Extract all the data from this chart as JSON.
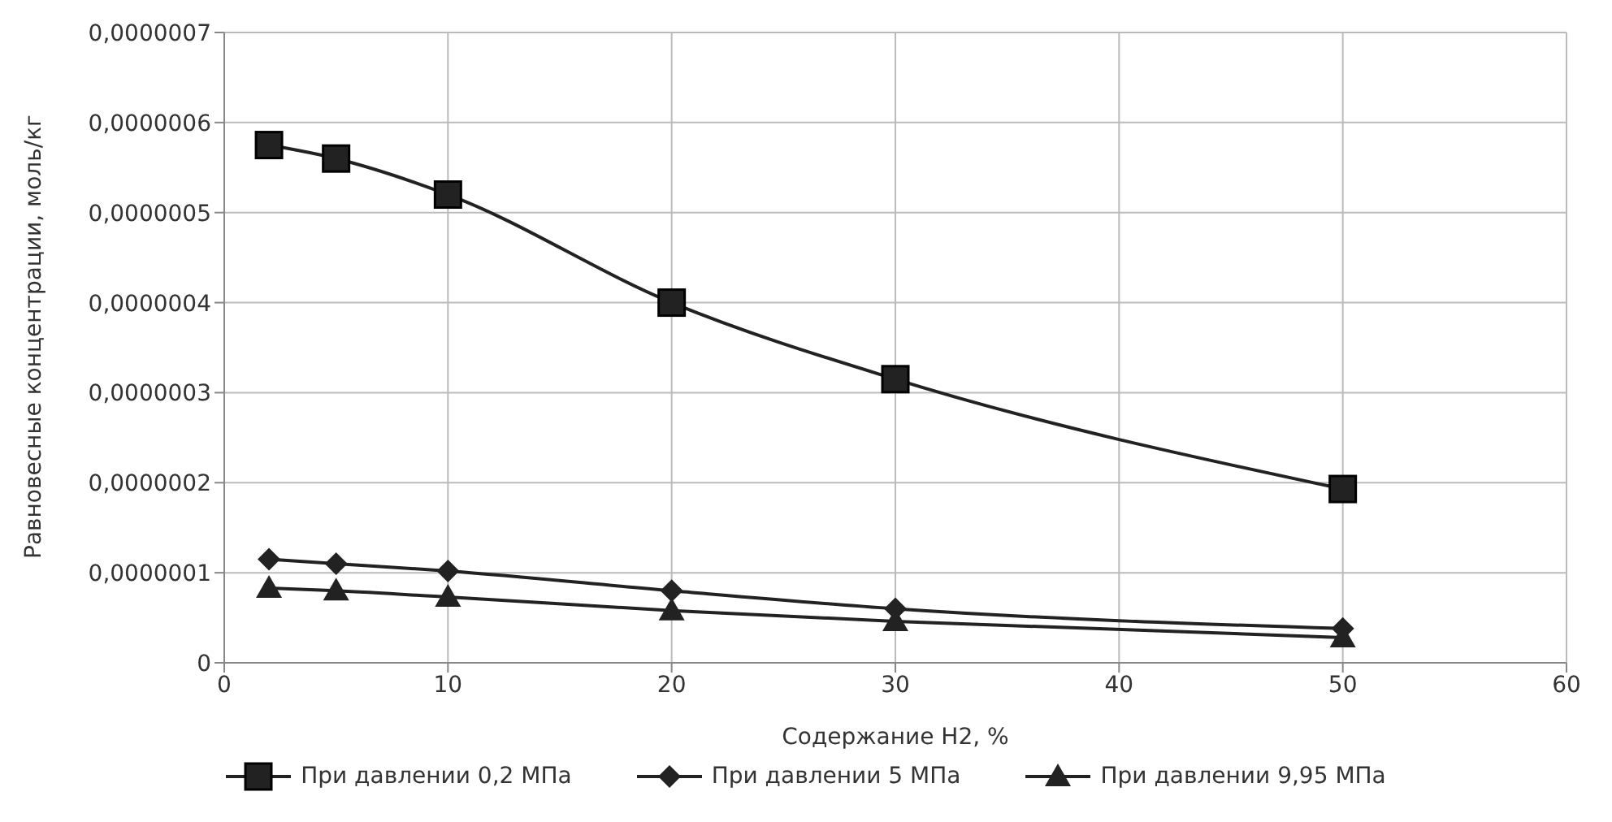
{
  "chart_data": {
    "type": "line",
    "xlabel": "Содержание H2, %",
    "ylabel": "Равновесные концентрации, моль/кг",
    "x": [
      2,
      5,
      10,
      20,
      30,
      50
    ],
    "series": [
      {
        "name": "При давлении 0,2 МПа",
        "color": "#222222",
        "marker": "square",
        "values": [
          5.75e-07,
          5.6e-07,
          5.2e-07,
          4e-07,
          3.15e-07,
          1.93e-07
        ]
      },
      {
        "name": "При давлении 5 МПа",
        "color": "#222222",
        "marker": "diamond",
        "values": [
          1.15e-07,
          1.1e-07,
          1.02e-07,
          8e-08,
          6e-08,
          3.8e-08
        ]
      },
      {
        "name": "При давлении 9,95 МПа",
        "color": "#222222",
        "marker": "triangle",
        "values": [
          8.3e-08,
          8e-08,
          7.3e-08,
          5.8e-08,
          4.6e-08,
          2.8e-08
        ]
      }
    ],
    "xlim": [
      0,
      60
    ],
    "xticks": [
      0,
      10,
      20,
      30,
      40,
      50,
      60
    ],
    "ylim": [
      0,
      7e-07
    ],
    "yticks": [
      0,
      {
        "value": 1e-07,
        "label": "0,0000001"
      },
      {
        "value": 2e-07,
        "label": "0,0000002"
      },
      {
        "value": 3e-07,
        "label": "0,0000003"
      },
      {
        "value": 4e-07,
        "label": "0,0000004"
      },
      {
        "value": 5e-07,
        "label": "0,0000005"
      },
      {
        "value": 6e-07,
        "label": "0,0000006"
      },
      {
        "value": 7e-07,
        "label": "0,0000007"
      }
    ],
    "grid": true,
    "legend": "bottom",
    "line_style": "solid"
  }
}
